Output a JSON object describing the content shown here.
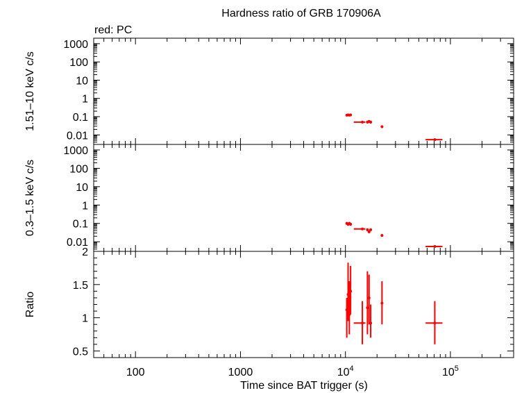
{
  "chart_data": {
    "type": "scatter",
    "title": "Hardness ratio of GRB 170906A",
    "subtitle": "red: PC",
    "xlabel": "Time since BAT trigger (s)",
    "x_scale": "log",
    "xlim": [
      40,
      400000
    ],
    "x_ticks": [
      {
        "value": 100,
        "label": "100"
      },
      {
        "value": 1000,
        "label": "1000"
      },
      {
        "value": 10000,
        "label": "10",
        "exp": "4"
      },
      {
        "value": 100000,
        "label": "10",
        "exp": "5"
      }
    ],
    "colors": {
      "series": "#ff0000",
      "axes": "#000000"
    },
    "panels": [
      {
        "id": "hard",
        "ylabel": "1.51–10 keV c/s",
        "y_scale": "log",
        "ylim": [
          0.003,
          2000
        ],
        "y_ticks": [
          {
            "value": 1000,
            "label": "1000"
          },
          {
            "value": 100,
            "label": "100"
          },
          {
            "value": 10,
            "label": "10"
          },
          {
            "value": 1,
            "label": "1"
          },
          {
            "value": 0.1,
            "label": "0.1"
          },
          {
            "value": 0.01,
            "label": "0.01"
          }
        ],
        "points": [
          {
            "x": 10300,
            "xlo": 10200,
            "xhi": 10450,
            "y": 0.12,
            "ylo": 0.105,
            "yhi": 0.14
          },
          {
            "x": 10600,
            "xlo": 10450,
            "xhi": 10750,
            "y": 0.125,
            "ylo": 0.11,
            "yhi": 0.145
          },
          {
            "x": 10900,
            "xlo": 10750,
            "xhi": 11050,
            "y": 0.12,
            "ylo": 0.105,
            "yhi": 0.14
          },
          {
            "x": 11200,
            "xlo": 11050,
            "xhi": 11350,
            "y": 0.125,
            "ylo": 0.11,
            "yhi": 0.145
          },
          {
            "x": 14500,
            "xlo": 12000,
            "xhi": 15500,
            "y": 0.05,
            "ylo": 0.045,
            "yhi": 0.056
          },
          {
            "x": 16200,
            "xlo": 15800,
            "xhi": 16600,
            "y": 0.05,
            "ylo": 0.042,
            "yhi": 0.06
          },
          {
            "x": 16800,
            "xlo": 16500,
            "xhi": 17100,
            "y": 0.055,
            "ylo": 0.047,
            "yhi": 0.064
          },
          {
            "x": 17400,
            "xlo": 17100,
            "xhi": 17700,
            "y": 0.05,
            "ylo": 0.042,
            "yhi": 0.06
          },
          {
            "x": 22300,
            "xlo": 21900,
            "xhi": 22700,
            "y": 0.028,
            "ylo": 0.024,
            "yhi": 0.033
          },
          {
            "x": 71000,
            "xlo": 58000,
            "xhi": 84000,
            "y": 0.0055,
            "ylo": 0.005,
            "yhi": 0.006
          }
        ]
      },
      {
        "id": "soft",
        "ylabel": "0.3–1.5 keV c/s",
        "y_scale": "log",
        "ylim": [
          0.003,
          2000
        ],
        "y_ticks": [
          {
            "value": 1000,
            "label": "1000"
          },
          {
            "value": 100,
            "label": "100"
          },
          {
            "value": 10,
            "label": "10"
          },
          {
            "value": 1,
            "label": "1"
          },
          {
            "value": 0.1,
            "label": "0.1"
          },
          {
            "value": 0.01,
            "label": "0.01"
          }
        ],
        "points": [
          {
            "x": 10300,
            "xlo": 10200,
            "xhi": 10450,
            "y": 0.1,
            "ylo": 0.085,
            "yhi": 0.12
          },
          {
            "x": 10600,
            "xlo": 10450,
            "xhi": 10750,
            "y": 0.09,
            "ylo": 0.075,
            "yhi": 0.105
          },
          {
            "x": 10900,
            "xlo": 10750,
            "xhi": 11050,
            "y": 0.1,
            "ylo": 0.085,
            "yhi": 0.12
          },
          {
            "x": 11200,
            "xlo": 11050,
            "xhi": 11350,
            "y": 0.09,
            "ylo": 0.075,
            "yhi": 0.105
          },
          {
            "x": 14500,
            "xlo": 12000,
            "xhi": 15500,
            "y": 0.05,
            "ylo": 0.045,
            "yhi": 0.056
          },
          {
            "x": 16200,
            "xlo": 15800,
            "xhi": 16600,
            "y": 0.045,
            "ylo": 0.038,
            "yhi": 0.053
          },
          {
            "x": 16800,
            "xlo": 16500,
            "xhi": 17100,
            "y": 0.035,
            "ylo": 0.029,
            "yhi": 0.042
          },
          {
            "x": 17400,
            "xlo": 17100,
            "xhi": 17700,
            "y": 0.045,
            "ylo": 0.038,
            "yhi": 0.053
          },
          {
            "x": 22300,
            "xlo": 21900,
            "xhi": 22700,
            "y": 0.022,
            "ylo": 0.019,
            "yhi": 0.026
          },
          {
            "x": 71000,
            "xlo": 58000,
            "xhi": 84000,
            "y": 0.0055,
            "ylo": 0.005,
            "yhi": 0.006
          }
        ]
      },
      {
        "id": "ratio",
        "ylabel": "Ratio",
        "y_scale": "linear",
        "ylim": [
          0.4,
          2.0
        ],
        "y_ticks": [
          {
            "value": 2,
            "label": "2"
          },
          {
            "value": 1.5,
            "label": "1.5"
          },
          {
            "value": 1,
            "label": "1"
          },
          {
            "value": 0.5,
            "label": "0.5"
          }
        ],
        "points": [
          {
            "x": 10300,
            "xlo": 10200,
            "xhi": 10450,
            "y": 1.12,
            "ylo": 0.7,
            "yhi": 1.3
          },
          {
            "x": 10600,
            "xlo": 10450,
            "xhi": 10750,
            "y": 1.35,
            "ylo": 0.95,
            "yhi": 1.83
          },
          {
            "x": 10900,
            "xlo": 10750,
            "xhi": 11050,
            "y": 1.05,
            "ylo": 0.75,
            "yhi": 1.55
          },
          {
            "x": 11200,
            "xlo": 11050,
            "xhi": 11350,
            "y": 1.4,
            "ylo": 1.05,
            "yhi": 1.78
          },
          {
            "x": 14500,
            "xlo": 12000,
            "xhi": 15500,
            "y": 0.92,
            "ylo": 0.6,
            "yhi": 1.25
          },
          {
            "x": 16200,
            "xlo": 15800,
            "xhi": 16600,
            "y": 1.15,
            "ylo": 0.75,
            "yhi": 1.7
          },
          {
            "x": 16800,
            "xlo": 16500,
            "xhi": 17100,
            "y": 1.3,
            "ylo": 0.9,
            "yhi": 1.65
          },
          {
            "x": 17400,
            "xlo": 17100,
            "xhi": 17700,
            "y": 0.92,
            "ylo": 0.7,
            "yhi": 1.2
          },
          {
            "x": 22300,
            "xlo": 21900,
            "xhi": 22700,
            "y": 1.22,
            "ylo": 0.9,
            "yhi": 1.55
          },
          {
            "x": 71000,
            "xlo": 58000,
            "xhi": 84000,
            "y": 0.92,
            "ylo": 0.6,
            "yhi": 1.25
          }
        ]
      }
    ]
  }
}
